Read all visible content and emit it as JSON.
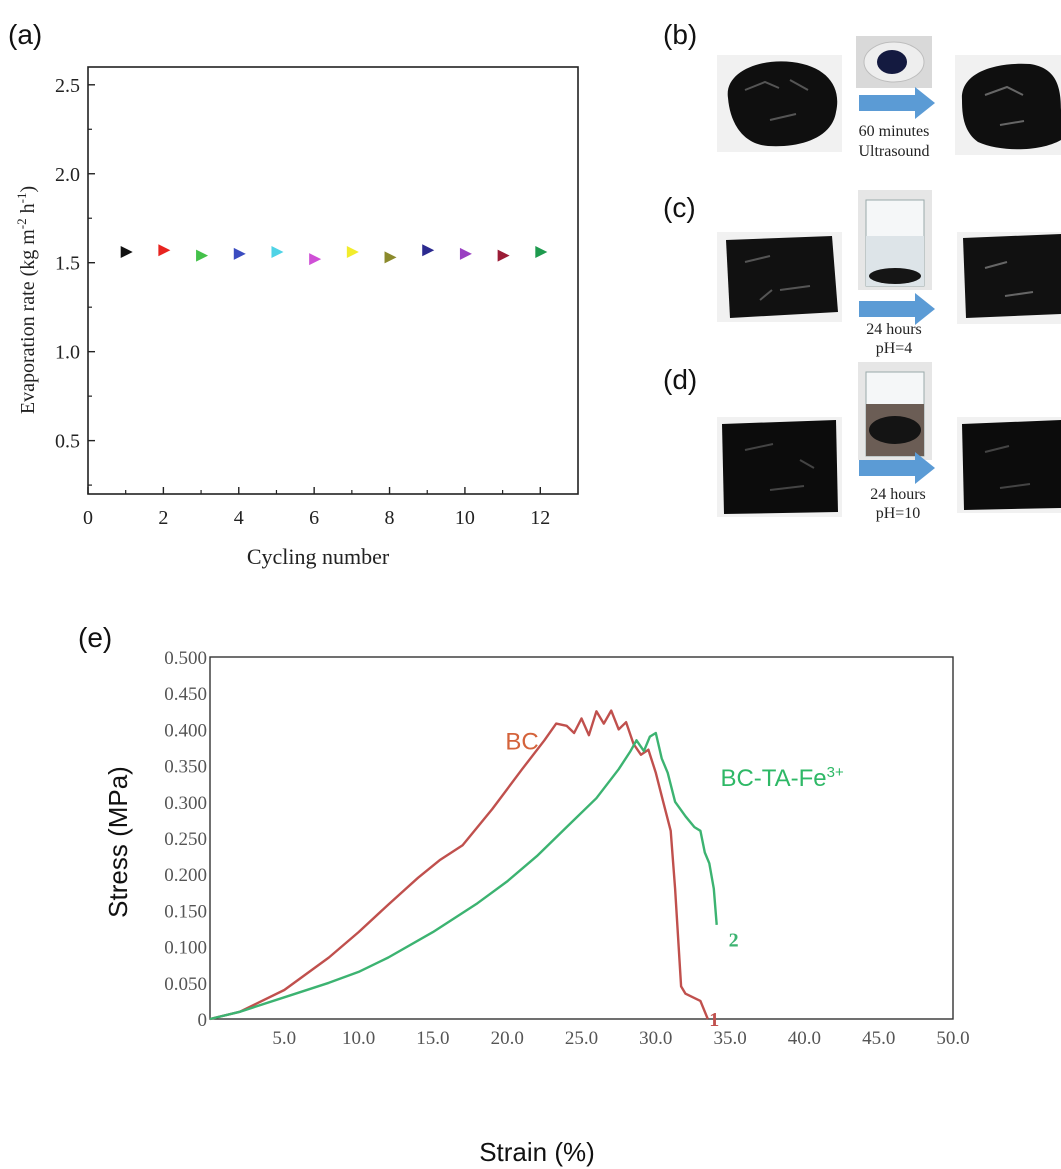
{
  "panels": {
    "a": "(a)",
    "b": "(b)",
    "c": "(c)",
    "d": "(d)",
    "e": "(e)"
  },
  "photo_captions": {
    "b_line1": "60 minutes",
    "b_line2": "Ultrasound",
    "c_line1": "24 hours",
    "c_line2": "pH=4",
    "d_line1": "24 hours",
    "d_line2": "pH=10"
  },
  "colors": {
    "arrow": "#5b9bd5",
    "material": "#101010",
    "bc_curve": "#c0504d",
    "bcta_curve": "#3cb371",
    "bc_label": "#d4633b",
    "bcta_label": "#2eb866"
  },
  "chart_data": [
    {
      "type": "scatter",
      "xlabel": "Cycling number",
      "ylabel": "Evaporation rate (kg m-2 h-1)",
      "ylabel_parts": [
        "Evaporation rate (kg m",
        "-2",
        " h",
        "-1",
        ")"
      ],
      "xlim": [
        0,
        13
      ],
      "ylim": [
        0.2,
        2.6
      ],
      "xticks": [
        "0",
        "2",
        "4",
        "6",
        "8",
        "10",
        "12"
      ],
      "yticks": [
        "0.5",
        "1.0",
        "1.5",
        "2.0",
        "2.5"
      ],
      "marker": "right-triangle",
      "points": [
        {
          "x": 1,
          "y": 1.56,
          "color": "#111111"
        },
        {
          "x": 2,
          "y": 1.57,
          "color": "#e8231f"
        },
        {
          "x": 3,
          "y": 1.54,
          "color": "#44c14a"
        },
        {
          "x": 4,
          "y": 1.55,
          "color": "#3b4cc0"
        },
        {
          "x": 5,
          "y": 1.56,
          "color": "#4fd3e6"
        },
        {
          "x": 6,
          "y": 1.52,
          "color": "#cf4fd6"
        },
        {
          "x": 7,
          "y": 1.56,
          "color": "#f2ec2c"
        },
        {
          "x": 8,
          "y": 1.53,
          "color": "#8b8a2c"
        },
        {
          "x": 9,
          "y": 1.57,
          "color": "#2b2a8f"
        },
        {
          "x": 10,
          "y": 1.55,
          "color": "#9a3fc2"
        },
        {
          "x": 11,
          "y": 1.54,
          "color": "#9b1c36"
        },
        {
          "x": 12,
          "y": 1.56,
          "color": "#1e9a4e"
        }
      ]
    },
    {
      "type": "line",
      "xlabel": "Strain (%)",
      "ylabel": "Stress (MPa)",
      "xlim": [
        0,
        50
      ],
      "ylim": [
        0,
        0.5
      ],
      "xticks": [
        "5.0",
        "10.0",
        "15.0",
        "20.0",
        "25.0",
        "30.0",
        "35.0",
        "40.0",
        "45.0",
        "50.0"
      ],
      "yticks": [
        "0",
        "0.050",
        "0.100",
        "0.150",
        "0.200",
        "0.250",
        "0.300",
        "0.350",
        "0.400",
        "0.450",
        "0.500"
      ],
      "annotations": [
        {
          "text": "BC",
          "x": 21.0,
          "y": 0.372
        },
        {
          "text": "BC-TA-Fe",
          "sup": "3+",
          "x": 38.5,
          "y": 0.322
        },
        {
          "text": "1",
          "x": 33.6,
          "y": -0.01
        },
        {
          "text": "2",
          "x": 34.9,
          "y": 0.1
        }
      ],
      "series": [
        {
          "label": "1",
          "x": [
            0,
            2,
            5,
            8,
            10,
            12,
            14,
            15.5,
            17,
            19,
            21,
            22.5,
            23.3,
            24,
            24.5,
            25,
            25.5,
            26,
            26.5,
            27,
            27.5,
            28,
            28.5,
            29,
            29.5,
            30,
            30.5,
            31,
            31.3,
            31.7,
            32,
            33,
            33.5
          ],
          "y": [
            0,
            0.01,
            0.04,
            0.085,
            0.12,
            0.158,
            0.195,
            0.22,
            0.24,
            0.29,
            0.345,
            0.385,
            0.408,
            0.405,
            0.395,
            0.415,
            0.392,
            0.425,
            0.408,
            0.426,
            0.4,
            0.41,
            0.38,
            0.365,
            0.372,
            0.34,
            0.3,
            0.26,
            0.18,
            0.045,
            0.035,
            0.025,
            0.0
          ]
        },
        {
          "label": "2",
          "x": [
            0,
            2,
            5,
            8,
            10,
            12,
            15,
            18,
            20,
            22,
            24,
            26,
            27.5,
            28.3,
            28.7,
            29.2,
            29.6,
            30,
            30.4,
            30.8,
            31.3,
            32,
            32.6,
            33,
            33.3,
            33.6,
            33.9,
            34.1
          ],
          "y": [
            0,
            0.01,
            0.03,
            0.05,
            0.065,
            0.085,
            0.12,
            0.16,
            0.19,
            0.225,
            0.265,
            0.305,
            0.345,
            0.37,
            0.385,
            0.37,
            0.39,
            0.395,
            0.36,
            0.34,
            0.3,
            0.28,
            0.265,
            0.26,
            0.23,
            0.215,
            0.18,
            0.13
          ]
        }
      ]
    }
  ]
}
